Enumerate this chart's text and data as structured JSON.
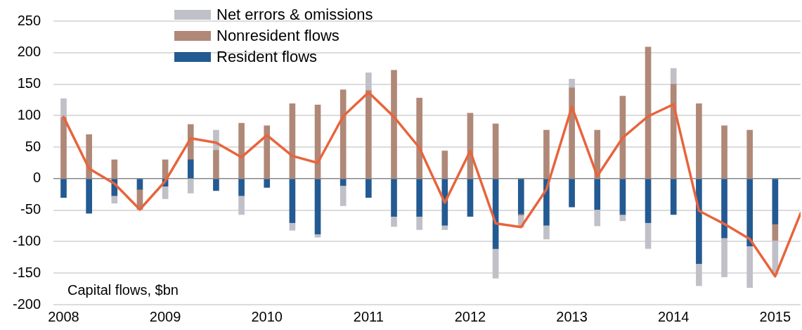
{
  "chart_data": {
    "type": "bar",
    "stacked": true,
    "legend": "top",
    "grid": "y",
    "marker": "none",
    "annotations": [
      "Capital flows, $bn"
    ],
    "x": [
      2008,
      2008.25,
      2008.5,
      2008.75,
      2009,
      2009.25,
      2009.5,
      2009.75,
      2010,
      2010.25,
      2010.5,
      2010.75,
      2011,
      2011.25,
      2011.5,
      2011.75,
      2012,
      2012.25,
      2012.5,
      2012.75,
      2013,
      2013.25,
      2013.5,
      2013.75,
      2014,
      2014.25,
      2014.5,
      2014.75,
      2015
    ],
    "xlim": [
      2007.9,
      2015.25
    ],
    "xticks": [
      2008,
      2009,
      2010,
      2011,
      2012,
      2013,
      2014,
      2015
    ],
    "ylim": [
      -200,
      250
    ],
    "yticks": [
      -200,
      -150,
      -100,
      -50,
      0,
      50,
      100,
      150,
      200,
      250
    ],
    "series": [
      {
        "name": "Resident flows",
        "color": "#245a92",
        "values": [
          -30,
          -55,
          -27,
          -17,
          -12,
          30,
          -19,
          -27,
          -14,
          -70,
          -88,
          -11,
          -30,
          -60,
          -60,
          -74,
          -60,
          -111,
          -56,
          -74,
          -45,
          -49,
          -57,
          -70,
          -57,
          -135,
          -94,
          -107,
          -72
        ]
      },
      {
        "name": "Nonresident flows",
        "color": "#b08878",
        "values": [
          97,
          70,
          30,
          -32,
          30,
          56,
          45,
          88,
          84,
          119,
          117,
          141,
          140,
          172,
          128,
          44,
          104,
          87,
          -2,
          77,
          144,
          77,
          131,
          209,
          150,
          119,
          84,
          77,
          -26
        ]
      },
      {
        "name": "Net errors & omissions",
        "color": "#c0c0c8",
        "values": [
          30,
          null,
          -12,
          null,
          -20,
          -23,
          32,
          -30,
          null,
          -12,
          -5,
          -32,
          28,
          -16,
          -21,
          -7,
          null,
          -47,
          -19,
          -22,
          14,
          -26,
          -10,
          -41,
          25,
          -35,
          -62,
          -66,
          -54
        ]
      },
      {
        "type": "line",
        "color": "#e8643c",
        "x": [
          2008,
          2008.25,
          2008.5,
          2008.75,
          2009,
          2009.25,
          2009.5,
          2009.75,
          2010,
          2010.25,
          2010.5,
          2010.75,
          2011,
          2011.25,
          2011.5,
          2011.75,
          2012,
          2012.25,
          2012.5,
          2012.75,
          2013,
          2013.25,
          2013.5,
          2013.75,
          2014,
          2014.25,
          2014.5,
          2014.75,
          2015,
          2015.25
        ],
        "values": [
          98,
          16,
          -8,
          -49,
          -4,
          64,
          57,
          34,
          69,
          36,
          25,
          99,
          137,
          98,
          49,
          -38,
          44,
          -71,
          -77,
          -17,
          114,
          4,
          65,
          99,
          118,
          -51,
          -72,
          -96,
          -155,
          -55
        ]
      }
    ]
  }
}
